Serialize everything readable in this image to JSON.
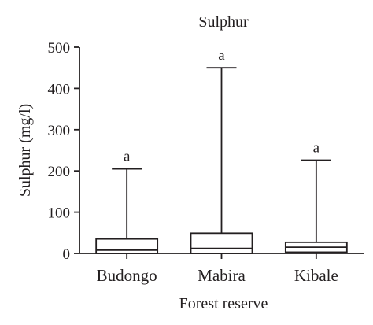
{
  "chart_data": {
    "type": "boxplot",
    "title": "Sulphur",
    "xlabel": "Forest reserve",
    "ylabel": "Sulphur (mg/l)",
    "ylim": [
      0,
      500
    ],
    "yticks": [
      0,
      100,
      200,
      300,
      400,
      500
    ],
    "grid": false,
    "categories": [
      "Budongo",
      "Mabira",
      "Kibale"
    ],
    "boxes": [
      {
        "category": "Budongo",
        "min": 0,
        "q1": 0,
        "median": 8,
        "q3": 35,
        "max": 205,
        "annotation": "a"
      },
      {
        "category": "Mabira",
        "min": 0,
        "q1": 0,
        "median": 12,
        "q3": 49,
        "max": 450,
        "annotation": "a"
      },
      {
        "category": "Kibale",
        "min": 0,
        "q1": 3,
        "median": 15,
        "q3": 27,
        "max": 226,
        "annotation": "a"
      }
    ]
  }
}
